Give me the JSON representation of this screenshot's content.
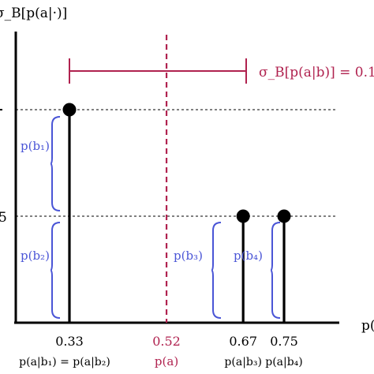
{
  "chart_data": {
    "type": "stem",
    "ylabel": "σ_B[p(a|·)]",
    "xlabel": "p(",
    "y_tick_labels": [
      "5"
    ],
    "stems": [
      {
        "x": 0.33,
        "height": 1.0,
        "tick_label": "0.33",
        "sub_label": "p(a|b₁) = p(a|b₂)"
      },
      {
        "x": 0.67,
        "height": 0.5,
        "tick_label": "0.67",
        "sub_label": "p(a|b₃)"
      },
      {
        "x": 0.75,
        "height": 0.5,
        "tick_label": "0.75",
        "sub_label": "p(a|b₄)"
      }
    ],
    "mean_line": {
      "x": 0.52,
      "tick_label": "0.52",
      "sub_label": "p(a)",
      "color": "#b0224f"
    },
    "spread": {
      "label": "σ_B[p(a|b)] = 0.1",
      "color": "#b0224f"
    },
    "braces": [
      {
        "label": "p(b₁)",
        "color": "#4a55d6"
      },
      {
        "label": "p(b₂)",
        "color": "#4a55d6"
      },
      {
        "label": "p(b₃)",
        "color": "#4a55d6"
      },
      {
        "label": "p(b₄)",
        "color": "#4a55d6"
      }
    ],
    "colors": {
      "stem": "#000000",
      "axis": "#000000",
      "guide": "#000000"
    }
  }
}
